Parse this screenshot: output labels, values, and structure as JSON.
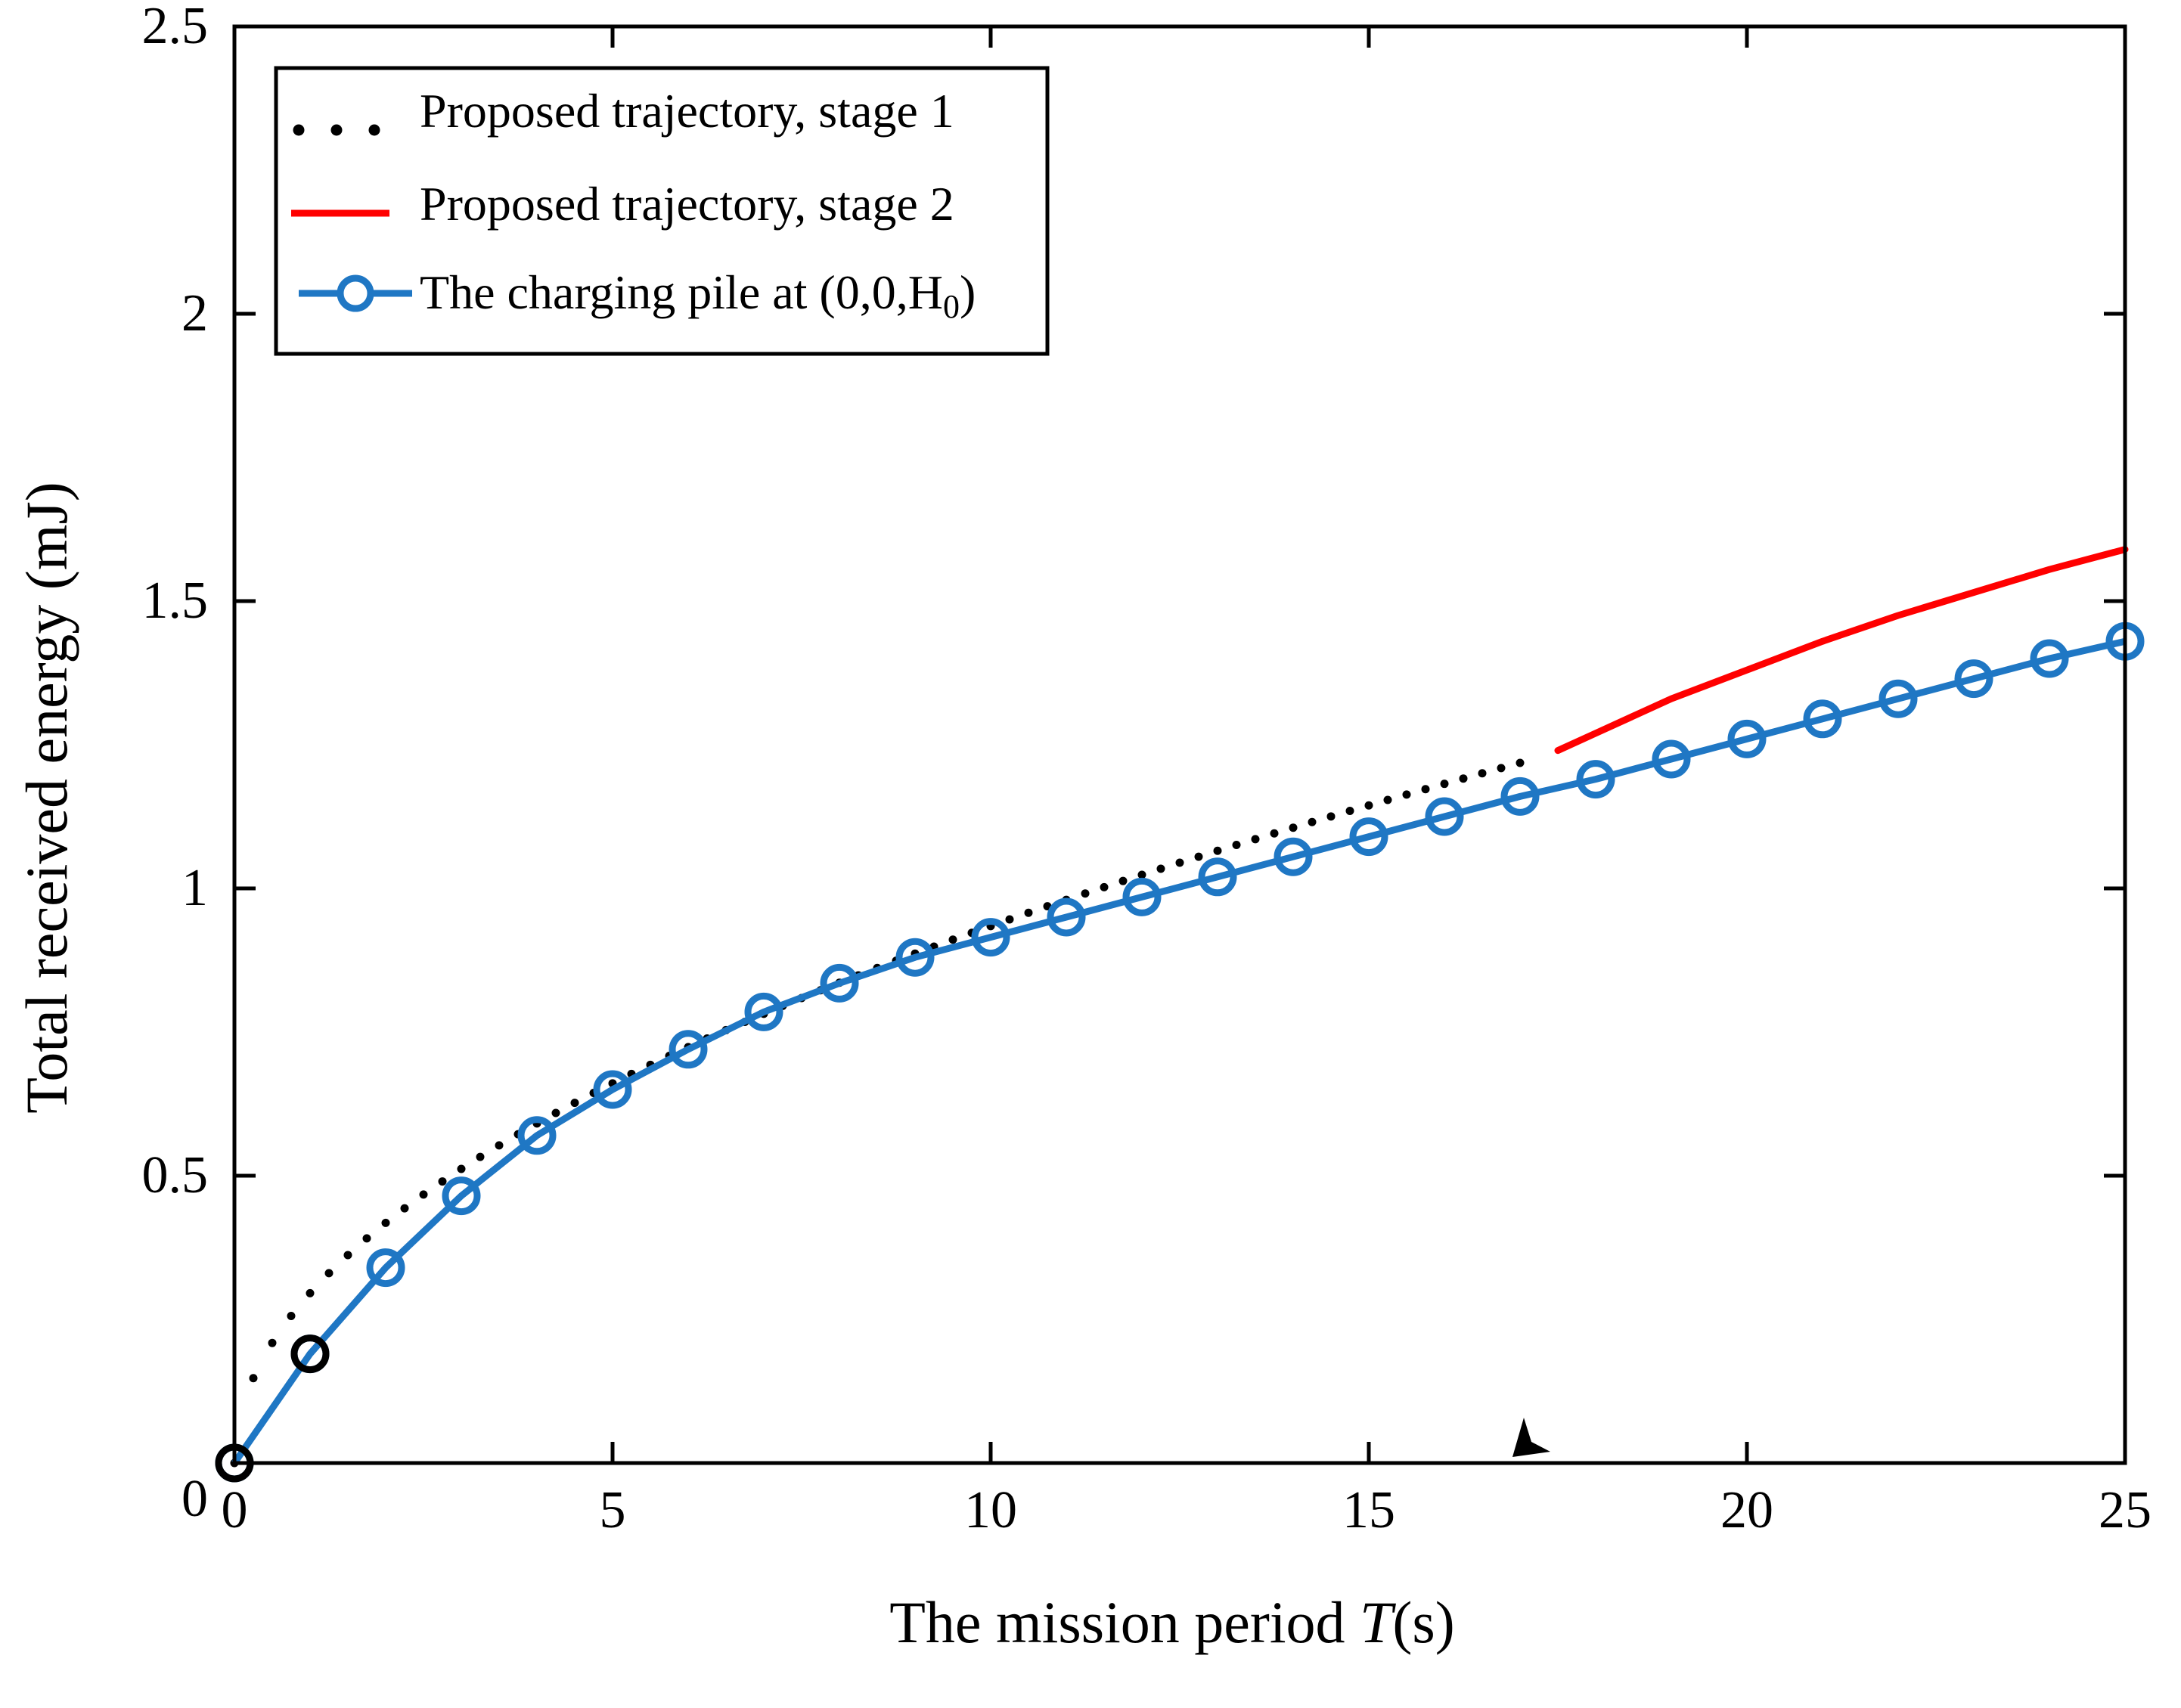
{
  "chart_data": {
    "type": "line",
    "xlabel_prefix": "The mission period ",
    "xlabel_var": "T",
    "xlabel_suffix": "(s)",
    "ylabel": "Total received energy (mJ)",
    "xlim": [
      0,
      25
    ],
    "ylim": [
      0,
      2.5
    ],
    "x_ticks": [
      0,
      5,
      10,
      15,
      20,
      25
    ],
    "y_ticks": [
      0,
      0.5,
      1,
      1.5,
      2,
      2.5
    ],
    "x_tick_labels": [
      "0",
      "5",
      "10",
      "15",
      "20",
      "25"
    ],
    "y_tick_labels": [
      "0",
      "0.5",
      "1",
      "1.5",
      "2",
      "2.5"
    ],
    "legend_position": "top-left",
    "series": [
      {
        "name": "Proposed trajectory, stage 1",
        "style": "dotted",
        "color": "#000000",
        "x_start": 0,
        "x_end": 17,
        "x_step": 0.25,
        "coef": 0.2955,
        "power": 0.5
      },
      {
        "name": "Proposed trajectory, stage 2",
        "style": "solid",
        "color": "#ff0000",
        "x": [
          17.5,
          18,
          19,
          20,
          21,
          22,
          23,
          24,
          25
        ],
        "values": [
          1.24,
          1.27,
          1.33,
          1.38,
          1.43,
          1.475,
          1.515,
          1.555,
          1.59
        ]
      },
      {
        "name_prefix": "The charging pile at (0,0,H",
        "name_sub": "0",
        "name_suffix": ")",
        "style": "solid-circle",
        "color": "#1f77c4",
        "x": [
          0,
          1,
          2,
          3,
          4,
          5,
          6,
          7,
          8,
          9,
          10,
          11,
          12,
          13,
          14,
          15,
          16,
          17,
          18,
          19,
          20,
          21,
          22,
          23,
          24,
          25
        ],
        "values": [
          0,
          0.19,
          0.34,
          0.465,
          0.57,
          0.65,
          0.72,
          0.785,
          0.835,
          0.88,
          0.915,
          0.95,
          0.985,
          1.02,
          1.055,
          1.09,
          1.125,
          1.16,
          1.19,
          1.225,
          1.26,
          1.295,
          1.33,
          1.365,
          1.4,
          1.43
        ]
      }
    ],
    "markers": [
      {
        "name": "start-marker",
        "x": 0,
        "y": 0,
        "shape": "circle",
        "color": "#000000"
      },
      {
        "name": "stage1-marker",
        "x": 1,
        "y": 0.19,
        "shape": "circle",
        "color": "#000000"
      },
      {
        "name": "switch-arrow",
        "x": 17,
        "y": 0,
        "shape": "arrowhead",
        "color": "#000000"
      }
    ]
  }
}
